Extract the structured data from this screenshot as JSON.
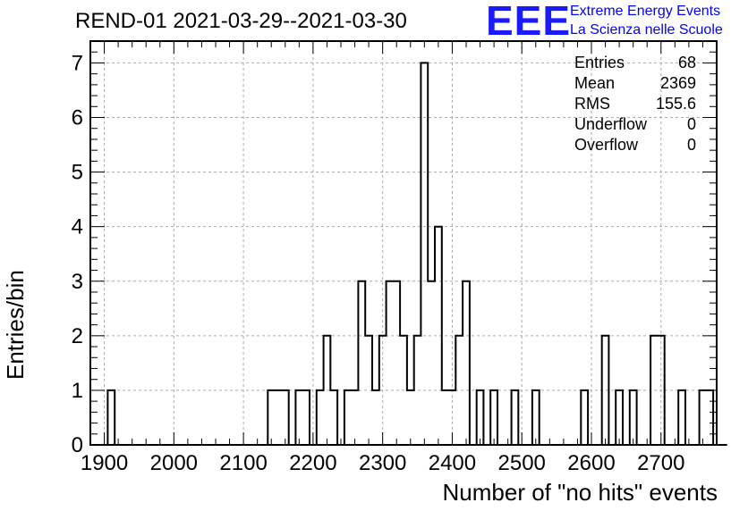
{
  "chart_data": {
    "type": "histogram",
    "title": "REND-01 2021-03-29--2021-03-30",
    "xlabel": "Number of \"no hits\" events",
    "ylabel": "Entries/bin",
    "xlim": [
      1880,
      2780
    ],
    "ylim": [
      0,
      7.4
    ],
    "bin_width": 10,
    "x_ticks": [
      1900,
      2000,
      2100,
      2200,
      2300,
      2400,
      2500,
      2600,
      2700
    ],
    "y_ticks": [
      0,
      1,
      2,
      3,
      4,
      5,
      6,
      7
    ],
    "grid": true,
    "bins": [
      {
        "low": 1905,
        "count": 1
      },
      {
        "low": 2135,
        "count": 1
      },
      {
        "low": 2145,
        "count": 1
      },
      {
        "low": 2155,
        "count": 1
      },
      {
        "low": 2175,
        "count": 1
      },
      {
        "low": 2185,
        "count": 1
      },
      {
        "low": 2205,
        "count": 1
      },
      {
        "low": 2215,
        "count": 2
      },
      {
        "low": 2225,
        "count": 1
      },
      {
        "low": 2245,
        "count": 1
      },
      {
        "low": 2255,
        "count": 1
      },
      {
        "low": 2265,
        "count": 3
      },
      {
        "low": 2275,
        "count": 2
      },
      {
        "low": 2285,
        "count": 1
      },
      {
        "low": 2295,
        "count": 2
      },
      {
        "low": 2305,
        "count": 3
      },
      {
        "low": 2315,
        "count": 3
      },
      {
        "low": 2325,
        "count": 2
      },
      {
        "low": 2335,
        "count": 1
      },
      {
        "low": 2345,
        "count": 2
      },
      {
        "low": 2355,
        "count": 7
      },
      {
        "low": 2365,
        "count": 3
      },
      {
        "low": 2375,
        "count": 4
      },
      {
        "low": 2385,
        "count": 1
      },
      {
        "low": 2395,
        "count": 1
      },
      {
        "low": 2405,
        "count": 2
      },
      {
        "low": 2415,
        "count": 3
      },
      {
        "low": 2435,
        "count": 1
      },
      {
        "low": 2455,
        "count": 1
      },
      {
        "low": 2485,
        "count": 1
      },
      {
        "low": 2515,
        "count": 1
      },
      {
        "low": 2585,
        "count": 1
      },
      {
        "low": 2615,
        "count": 2
      },
      {
        "low": 2635,
        "count": 1
      },
      {
        "low": 2655,
        "count": 1
      },
      {
        "low": 2685,
        "count": 2
      },
      {
        "low": 2695,
        "count": 2
      },
      {
        "low": 2725,
        "count": 1
      },
      {
        "low": 2755,
        "count": 1
      },
      {
        "low": 2765,
        "count": 1
      }
    ],
    "stats": {
      "entries_label": "Entries",
      "entries": "68",
      "mean_label": "Mean",
      "mean": "2369",
      "rms_label": "RMS",
      "rms": "155.6",
      "underflow_label": "Underflow",
      "underflow": "0",
      "overflow_label": "Overflow",
      "overflow": "0"
    }
  },
  "logo": {
    "mark": "EEE",
    "line1": "Extreme Energy Events",
    "line2": "La Scienza nelle Scuole",
    "color": "#0000ff"
  }
}
